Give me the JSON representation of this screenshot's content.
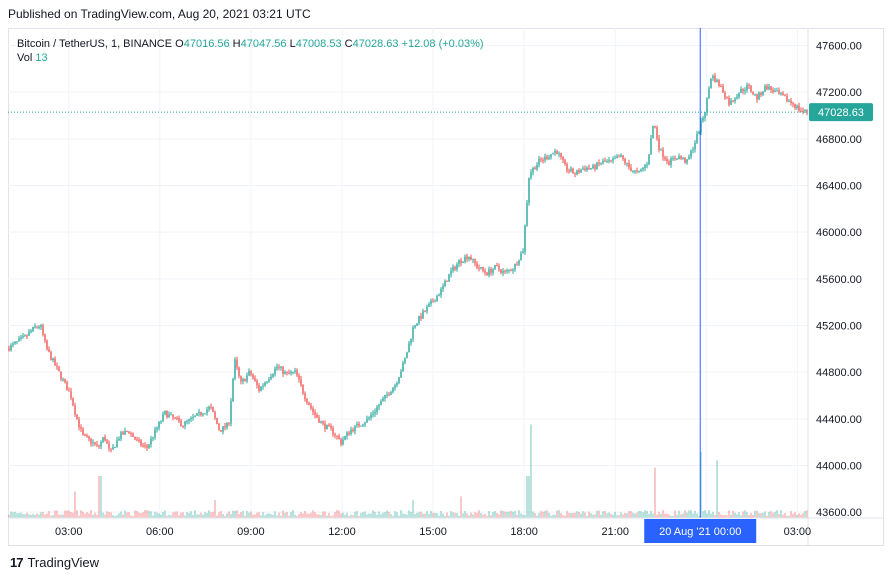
{
  "header": {
    "published": "Published on TradingView.com, Aug 20, 2021 03:21 UTC"
  },
  "legend": {
    "symbol": "Bitcoin / TetherUS, 1, BINANCE",
    "o_label": "O",
    "o_value": "47016.56",
    "h_label": "H",
    "h_value": "47047.56",
    "l_label": "L",
    "l_value": "47008.53",
    "c_label": "C",
    "c_value": "47028.63",
    "change": "+12.08 (+0.03%)",
    "vol_label": "Vol",
    "vol_value": "13"
  },
  "colors": {
    "up": "#26a69a",
    "down": "#ef5350",
    "crosshair_badge": "#2962ff",
    "last_price_badge": "#26a69a"
  },
  "footer": {
    "brand": "TradingView",
    "logo_glyph": "17"
  },
  "chart_data": {
    "type": "candlestick",
    "symbol": "Bitcoin / TetherUS",
    "interval": "1",
    "exchange": "BINANCE",
    "ylim": [
      43550,
      47750
    ],
    "y_ticks": [
      "47600.00",
      "47200.00",
      "46800.00",
      "46400.00",
      "46000.00",
      "45600.00",
      "45200.00",
      "44800.00",
      "44400.00",
      "44000.00",
      "43600.00"
    ],
    "y_tick_values": [
      47600,
      47200,
      46800,
      46400,
      46000,
      45600,
      45200,
      44800,
      44400,
      44000,
      43600
    ],
    "x_ticks": [
      "03:00",
      "06:00",
      "09:00",
      "12:00",
      "15:00",
      "18:00",
      "21:00",
      "00:00",
      "03:00"
    ],
    "x_tick_hours": [
      3,
      6,
      9,
      12,
      15,
      18,
      21,
      24,
      27
    ],
    "x_range_hours": [
      1.0,
      27.35
    ],
    "crosshair": {
      "label": "20 Aug '21   00:00",
      "hour": 23.8
    },
    "last_price": {
      "label": "47028.63",
      "value": 47028.63
    },
    "grid": true,
    "price_path": [
      [
        1.0,
        45000
      ],
      [
        1.3,
        45050
      ],
      [
        1.6,
        45100
      ],
      [
        1.9,
        45180
      ],
      [
        2.1,
        45200
      ],
      [
        2.3,
        45000
      ],
      [
        2.6,
        44850
      ],
      [
        2.9,
        44700
      ],
      [
        3.1,
        44600
      ],
      [
        3.3,
        44400
      ],
      [
        3.5,
        44250
      ],
      [
        3.8,
        44200
      ],
      [
        4.0,
        44150
      ],
      [
        4.2,
        44250
      ],
      [
        4.4,
        44100
      ],
      [
        4.7,
        44250
      ],
      [
        5.0,
        44300
      ],
      [
        5.3,
        44200
      ],
      [
        5.6,
        44150
      ],
      [
        5.9,
        44300
      ],
      [
        6.2,
        44450
      ],
      [
        6.5,
        44400
      ],
      [
        6.8,
        44350
      ],
      [
        7.1,
        44400
      ],
      [
        7.4,
        44450
      ],
      [
        7.7,
        44500
      ],
      [
        8.0,
        44300
      ],
      [
        8.3,
        44350
      ],
      [
        8.5,
        44900
      ],
      [
        8.7,
        44700
      ],
      [
        9.0,
        44800
      ],
      [
        9.3,
        44650
      ],
      [
        9.6,
        44750
      ],
      [
        9.9,
        44850
      ],
      [
        10.2,
        44780
      ],
      [
        10.5,
        44800
      ],
      [
        10.8,
        44600
      ],
      [
        11.1,
        44450
      ],
      [
        11.4,
        44350
      ],
      [
        11.7,
        44300
      ],
      [
        12.0,
        44200
      ],
      [
        12.3,
        44300
      ],
      [
        12.6,
        44350
      ],
      [
        12.9,
        44400
      ],
      [
        13.2,
        44500
      ],
      [
        13.5,
        44600
      ],
      [
        13.8,
        44700
      ],
      [
        14.1,
        44900
      ],
      [
        14.4,
        45200
      ],
      [
        14.7,
        45300
      ],
      [
        15.0,
        45400
      ],
      [
        15.3,
        45500
      ],
      [
        15.6,
        45650
      ],
      [
        15.9,
        45750
      ],
      [
        16.2,
        45800
      ],
      [
        16.5,
        45700
      ],
      [
        16.8,
        45650
      ],
      [
        17.1,
        45700
      ],
      [
        17.4,
        45650
      ],
      [
        17.7,
        45700
      ],
      [
        18.0,
        45850
      ],
      [
        18.2,
        46500
      ],
      [
        18.5,
        46600
      ],
      [
        18.8,
        46650
      ],
      [
        19.1,
        46700
      ],
      [
        19.4,
        46550
      ],
      [
        19.7,
        46500
      ],
      [
        20.0,
        46550
      ],
      [
        20.3,
        46550
      ],
      [
        20.6,
        46600
      ],
      [
        20.9,
        46600
      ],
      [
        21.2,
        46650
      ],
      [
        21.5,
        46550
      ],
      [
        21.8,
        46500
      ],
      [
        22.1,
        46600
      ],
      [
        22.3,
        46950
      ],
      [
        22.5,
        46700
      ],
      [
        22.8,
        46600
      ],
      [
        23.1,
        46650
      ],
      [
        23.4,
        46600
      ],
      [
        23.7,
        46800
      ],
      [
        24.0,
        47050
      ],
      [
        24.2,
        47350
      ],
      [
        24.5,
        47250
      ],
      [
        24.8,
        47100
      ],
      [
        25.1,
        47200
      ],
      [
        25.4,
        47250
      ],
      [
        25.7,
        47150
      ],
      [
        26.0,
        47250
      ],
      [
        26.3,
        47200
      ],
      [
        26.6,
        47150
      ],
      [
        26.9,
        47100
      ],
      [
        27.1,
        47050
      ],
      [
        27.3,
        47030
      ]
    ],
    "volume_spikes": [
      [
        3.2,
        0.22
      ],
      [
        4.0,
        0.35
      ],
      [
        7.8,
        0.15
      ],
      [
        14.3,
        0.15
      ],
      [
        15.9,
        0.18
      ],
      [
        18.2,
        0.78
      ],
      [
        18.1,
        0.35
      ],
      [
        22.3,
        0.42
      ],
      [
        23.8,
        0.55
      ],
      [
        24.3,
        0.48
      ]
    ]
  }
}
